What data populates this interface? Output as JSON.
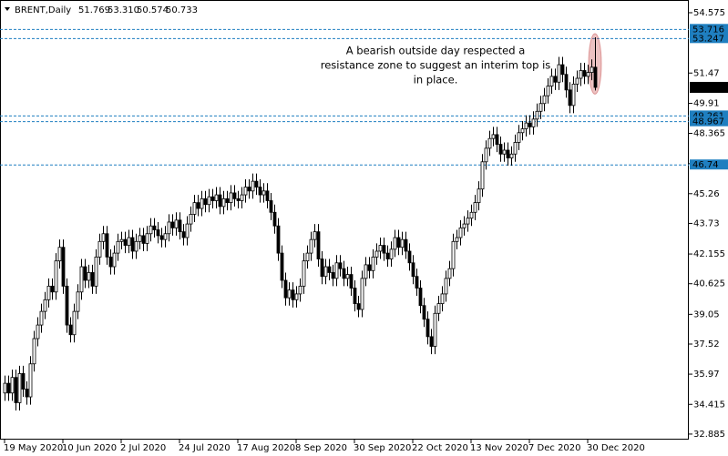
{
  "chart_data": {
    "type": "candlestick",
    "header": {
      "symbol": "BRENT,Daily",
      "values": [
        "51.769",
        "53.310",
        "50.574",
        "50.733"
      ]
    },
    "annotation": [
      "A bearish outside day respected a",
      "resistance zone to suggest an interim top is",
      "in place."
    ],
    "categories": [
      "19 May 2020",
      null,
      null,
      null,
      null,
      null,
      null,
      null,
      null,
      null,
      null,
      null,
      null,
      null,
      null,
      null,
      "10 Jun 2020",
      null,
      null,
      null,
      null,
      null,
      null,
      null,
      null,
      null,
      null,
      null,
      null,
      null,
      null,
      null,
      "2 Jul 2020",
      null,
      null,
      null,
      null,
      null,
      null,
      null,
      null,
      null,
      null,
      null,
      null,
      null,
      null,
      null,
      "24 Jul 2020",
      null,
      null,
      null,
      null,
      null,
      null,
      null,
      null,
      null,
      null,
      null,
      null,
      null,
      null,
      null,
      "17 Aug 2020",
      null,
      null,
      null,
      null,
      null,
      null,
      null,
      null,
      null,
      null,
      null,
      null,
      null,
      null,
      null,
      "8 Sep 2020",
      null,
      null,
      null,
      null,
      null,
      null,
      null,
      null,
      null,
      null,
      null,
      null,
      null,
      null,
      null,
      "30 Sep 2020",
      null,
      null,
      null,
      null,
      null,
      null,
      null,
      null,
      null,
      null,
      null,
      null,
      null,
      null,
      null,
      "22 Oct 2020",
      null,
      null,
      null,
      null,
      null,
      null,
      null,
      null,
      null,
      null,
      null,
      null,
      null,
      null,
      null,
      "13 Nov 2020",
      null,
      null,
      null,
      null,
      null,
      null,
      null,
      null,
      null,
      null,
      null,
      null,
      null,
      null,
      null,
      "7 Dec 2020",
      null,
      null,
      null,
      null,
      null,
      null,
      null,
      null,
      null,
      null,
      null,
      null,
      null,
      null,
      null,
      "30 Dec 2020",
      null,
      null
    ],
    "open": [
      35.0,
      35.5,
      35.0,
      35.8,
      34.5,
      36.0,
      35.2,
      34.8,
      36.5,
      37.8,
      38.5,
      39.2,
      39.8,
      40.5,
      40.2,
      41.8,
      42.5,
      40.5,
      38.5,
      38.0,
      39.2,
      40.2,
      41.5,
      40.8,
      41.2,
      40.5,
      42.0,
      42.8,
      43.2,
      42.0,
      41.5,
      42.2,
      42.8,
      42.9,
      42.6,
      43.0,
      42.3,
      42.8,
      43.1,
      42.7,
      43.2,
      43.6,
      43.4,
      43.1,
      42.9,
      43.2,
      43.8,
      43.5,
      43.9,
      43.3,
      43.0,
      43.7,
      44.2,
      44.8,
      44.5,
      45.0,
      44.7,
      45.1,
      44.9,
      45.2,
      44.6,
      45.0,
      44.8,
      45.3,
      45.0,
      44.9,
      45.2,
      45.6,
      45.4,
      45.9,
      45.6,
      45.2,
      45.4,
      44.9,
      44.3,
      43.6,
      42.2,
      40.8,
      39.9,
      40.3,
      39.8,
      40.1,
      40.5,
      41.8,
      42.2,
      42.9,
      43.3,
      41.9,
      41.0,
      41.5,
      41.2,
      40.9,
      41.7,
      41.4,
      40.9,
      41.1,
      40.4,
      39.6,
      39.3,
      40.9,
      41.6,
      41.3,
      42.0,
      42.3,
      42.6,
      42.2,
      41.9,
      42.4,
      43.0,
      42.5,
      42.9,
      42.3,
      41.7,
      41.0,
      40.4,
      39.5,
      38.8,
      37.9,
      37.4,
      39.1,
      39.6,
      40.1,
      40.9,
      41.4,
      42.8,
      43.0,
      43.5,
      43.7,
      44.0,
      44.3,
      44.8,
      45.5,
      46.9,
      47.6,
      48.1,
      48.3,
      47.8,
      47.3,
      47.5,
      47.1,
      47.3,
      47.9,
      48.4,
      48.6,
      48.9,
      48.7,
      49.1,
      49.5,
      49.9,
      50.3,
      50.8,
      51.3,
      51.0,
      51.9,
      51.4,
      50.6,
      49.8,
      50.9,
      51.2,
      51.6,
      51.3,
      51.5,
      51.769
    ],
    "high": [
      35.9,
      35.9,
      36.2,
      36.2,
      36.4,
      36.4,
      35.6,
      36.9,
      38.2,
      38.9,
      39.6,
      40.2,
      40.9,
      40.9,
      42.2,
      42.9,
      42.9,
      40.9,
      38.9,
      39.6,
      40.6,
      41.9,
      41.9,
      41.6,
      41.6,
      42.4,
      43.2,
      43.6,
      43.6,
      42.4,
      42.6,
      43.2,
      43.3,
      43.3,
      43.4,
      43.4,
      43.2,
      43.5,
      43.5,
      43.6,
      44.0,
      44.0,
      43.8,
      43.5,
      43.6,
      44.2,
      44.2,
      44.3,
      44.3,
      43.7,
      44.1,
      44.6,
      45.2,
      45.2,
      45.4,
      45.4,
      45.5,
      45.5,
      45.6,
      45.6,
      45.4,
      45.4,
      45.7,
      45.7,
      45.4,
      45.6,
      46.0,
      46.0,
      46.3,
      46.3,
      46.0,
      45.8,
      45.8,
      45.3,
      44.7,
      44.0,
      42.6,
      41.2,
      40.7,
      40.7,
      40.5,
      40.9,
      42.2,
      42.6,
      43.3,
      43.7,
      43.7,
      42.3,
      41.9,
      41.9,
      41.6,
      42.1,
      42.1,
      41.8,
      41.5,
      41.5,
      40.8,
      40.0,
      41.3,
      42.0,
      42.0,
      42.4,
      42.7,
      43.0,
      43.0,
      42.6,
      42.8,
      43.4,
      43.4,
      43.3,
      43.3,
      42.7,
      42.1,
      41.4,
      40.8,
      39.9,
      39.2,
      38.3,
      39.5,
      40.0,
      40.5,
      41.3,
      41.8,
      43.2,
      43.4,
      43.9,
      44.1,
      44.4,
      44.7,
      45.2,
      45.9,
      47.3,
      48.0,
      48.5,
      48.7,
      48.7,
      48.2,
      47.9,
      47.9,
      47.7,
      48.3,
      48.8,
      49.0,
      49.3,
      49.3,
      49.5,
      49.9,
      50.3,
      50.7,
      51.2,
      51.7,
      51.7,
      52.3,
      52.3,
      51.8,
      51.0,
      51.3,
      51.6,
      52.0,
      52.0,
      51.9,
      52.17,
      53.31
    ],
    "low": [
      34.6,
      34.6,
      34.6,
      34.1,
      34.1,
      34.8,
      34.4,
      34.4,
      36.1,
      37.4,
      38.1,
      38.8,
      39.4,
      39.8,
      39.8,
      41.4,
      40.1,
      38.1,
      37.6,
      37.6,
      38.8,
      39.8,
      40.4,
      40.4,
      40.1,
      40.1,
      41.6,
      42.4,
      41.6,
      41.1,
      41.1,
      41.8,
      42.4,
      42.2,
      42.2,
      41.9,
      41.9,
      42.4,
      42.3,
      42.3,
      42.8,
      43.0,
      42.7,
      42.5,
      42.5,
      42.8,
      43.1,
      43.1,
      42.9,
      42.6,
      42.6,
      43.3,
      43.8,
      44.1,
      44.1,
      44.3,
      44.3,
      44.5,
      44.5,
      44.2,
      44.2,
      44.4,
      44.4,
      44.6,
      44.5,
      44.5,
      44.8,
      45.0,
      45.0,
      45.2,
      44.8,
      44.8,
      44.5,
      43.9,
      43.2,
      41.8,
      40.4,
      39.5,
      39.5,
      39.4,
      39.4,
      39.7,
      40.1,
      41.4,
      41.8,
      42.5,
      41.5,
      40.6,
      40.6,
      40.8,
      40.5,
      40.5,
      41.0,
      40.5,
      40.5,
      40.0,
      39.2,
      38.9,
      38.9,
      40.5,
      40.9,
      40.9,
      41.6,
      41.9,
      41.8,
      41.5,
      41.5,
      42.0,
      42.1,
      42.1,
      41.9,
      41.3,
      40.6,
      40.0,
      39.1,
      38.4,
      37.5,
      37.0,
      37.0,
      38.7,
      39.2,
      39.7,
      40.5,
      41.0,
      42.4,
      42.6,
      43.1,
      43.3,
      43.6,
      43.9,
      44.4,
      45.1,
      46.5,
      47.2,
      47.7,
      47.4,
      46.9,
      46.9,
      46.7,
      46.7,
      46.9,
      47.5,
      48.0,
      48.2,
      48.3,
      48.3,
      48.7,
      49.1,
      49.5,
      49.9,
      50.4,
      50.6,
      50.6,
      51.0,
      50.2,
      49.4,
      49.4,
      50.5,
      50.8,
      50.9,
      50.9,
      51.1,
      50.574
    ],
    "close": [
      35.5,
      35.0,
      35.8,
      34.5,
      36.0,
      35.2,
      34.8,
      36.5,
      37.8,
      38.5,
      39.2,
      39.8,
      40.5,
      40.2,
      41.8,
      42.5,
      40.5,
      38.5,
      38.0,
      39.2,
      40.2,
      41.5,
      40.8,
      41.2,
      40.5,
      42.0,
      42.8,
      43.2,
      42.0,
      41.5,
      42.2,
      42.8,
      42.9,
      42.6,
      43.0,
      42.3,
      42.8,
      43.1,
      42.7,
      43.2,
      43.6,
      43.4,
      43.1,
      42.9,
      43.2,
      43.8,
      43.5,
      43.9,
      43.3,
      43.0,
      43.7,
      44.2,
      44.8,
      44.5,
      45.0,
      44.7,
      45.1,
      44.9,
      45.2,
      44.6,
      45.0,
      44.8,
      45.3,
      45.0,
      44.9,
      45.2,
      45.6,
      45.4,
      45.9,
      45.6,
      45.2,
      45.4,
      44.9,
      44.3,
      43.6,
      42.2,
      40.8,
      39.9,
      40.3,
      39.8,
      40.1,
      40.5,
      41.8,
      42.2,
      42.9,
      43.3,
      41.9,
      41.0,
      41.5,
      41.2,
      40.9,
      41.7,
      41.4,
      40.9,
      41.1,
      40.4,
      39.6,
      39.3,
      40.9,
      41.6,
      41.3,
      42.0,
      42.3,
      42.6,
      42.2,
      41.9,
      42.4,
      43.0,
      42.5,
      42.9,
      42.3,
      41.7,
      41.0,
      40.4,
      39.5,
      38.8,
      37.9,
      37.4,
      39.1,
      39.6,
      40.1,
      40.9,
      41.4,
      42.8,
      43.0,
      43.5,
      43.7,
      44.0,
      44.3,
      44.8,
      45.5,
      46.9,
      47.6,
      48.1,
      48.3,
      47.8,
      47.3,
      47.5,
      47.1,
      47.3,
      47.9,
      48.4,
      48.6,
      48.9,
      48.7,
      49.1,
      49.5,
      49.9,
      50.3,
      50.8,
      51.3,
      51.0,
      51.9,
      51.4,
      50.6,
      49.8,
      50.9,
      51.2,
      51.6,
      51.3,
      51.5,
      51.77,
      50.733
    ],
    "ylim": [
      32.6,
      55.23
    ],
    "yticks": [
      54.575,
      51.47,
      49.91,
      48.365,
      46.805,
      45.26,
      43.73,
      42.155,
      40.625,
      39.05,
      37.52,
      35.97,
      34.415,
      32.885
    ],
    "levels": [
      53.716,
      53.247,
      49.261,
      48.967,
      46.74
    ],
    "level_color": "#1f7fc0",
    "up_color": "#ffffff",
    "down_color": "#000000",
    "grid": false
  }
}
